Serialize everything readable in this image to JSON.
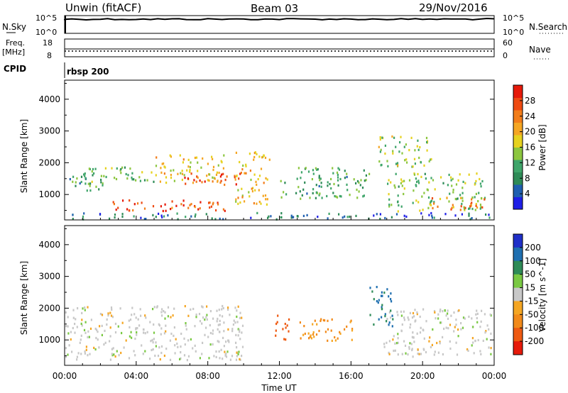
{
  "header": {
    "station": "Unwin (fitACF)",
    "beam": "Beam 03",
    "date": "29/Nov/2016"
  },
  "top_panels": {
    "nsky_label": "N.Sky",
    "nsearch_label": "N.Search",
    "noise_ticks_left": [
      "10^5",
      "10^0"
    ],
    "noise_ticks_right": [
      "10^5",
      "10^0"
    ],
    "freq_label_1": "Freq.",
    "freq_label_2": "[MHz]",
    "freq_ticks": [
      "18",
      "8"
    ],
    "nave_label": "Nave",
    "nave_ticks": [
      "60",
      "0"
    ],
    "cpid_label": "CPID",
    "cpid_value": "rbsp 200"
  },
  "chart_data": [
    {
      "type": "heatmap",
      "name": "power",
      "ylabel": "Slant Range [km]",
      "ylim": [
        200,
        4600
      ],
      "yticks": [
        1000,
        2000,
        3000,
        4000
      ],
      "xlim": [
        0,
        24
      ],
      "colorbar": {
        "label": "Power [dB]",
        "ticks": [
          4,
          8,
          12,
          16,
          20,
          24,
          28
        ],
        "range": [
          0,
          32
        ],
        "colors": [
          "#1f1fe6",
          "#1f5fb0",
          "#2e8b57",
          "#3fa56a",
          "#8cc63f",
          "#e6d21f",
          "#f5a623",
          "#f27d1a",
          "#ee4a12",
          "#e61a0a"
        ]
      },
      "features": [
        {
          "t0": 0.0,
          "t1": 2.0,
          "r0": 1150,
          "r1": 1700,
          "p": 10
        },
        {
          "t0": 1.0,
          "t1": 5.0,
          "r0": 1300,
          "r1": 1900,
          "p": 12
        },
        {
          "t0": 2.5,
          "t1": 9.5,
          "r0": 500,
          "r1": 850,
          "p": 27
        },
        {
          "t0": 5.0,
          "t1": 9.0,
          "r0": 1400,
          "r1": 2300,
          "p": 18
        },
        {
          "t0": 6.5,
          "t1": 9.8,
          "r0": 1250,
          "r1": 1700,
          "p": 26
        },
        {
          "t0": 9.5,
          "t1": 11.5,
          "r0": 700,
          "r1": 2400,
          "p": 20
        },
        {
          "t0": 12.0,
          "t1": 17.0,
          "r0": 900,
          "r1": 1900,
          "p": 11
        },
        {
          "t0": 17.5,
          "t1": 20.5,
          "r0": 1900,
          "r1": 2900,
          "p": 15
        },
        {
          "t0": 18.0,
          "t1": 23.5,
          "r0": 500,
          "r1": 1700,
          "p": 14
        },
        {
          "t0": 20.5,
          "t1": 23.5,
          "r0": 550,
          "r1": 950,
          "p": 24
        },
        {
          "t0": 0.0,
          "t1": 24.0,
          "r0": 250,
          "r1": 450,
          "p": 6
        }
      ]
    },
    {
      "type": "heatmap",
      "name": "velocity",
      "ylabel": "Slant Range [km]",
      "xlabel": "Time UT",
      "ylim": [
        200,
        4600
      ],
      "yticks": [
        1000,
        2000,
        3000,
        4000
      ],
      "xlim": [
        0,
        24
      ],
      "xticks": [
        "00:00",
        "04:00",
        "08:00",
        "12:00",
        "16:00",
        "20:00",
        "00:00"
      ],
      "colorbar": {
        "label": "Velocity [m s^-1]",
        "ticks": [
          200,
          100,
          50,
          15,
          -15,
          -50,
          -100,
          -200
        ],
        "colors": [
          "#1f2fc8",
          "#1f6fb0",
          "#2e8b57",
          "#7ac943",
          "#c8c8c8",
          "#f5a623",
          "#f28a1a",
          "#ee5a12",
          "#e61a0a"
        ]
      },
      "features": [
        {
          "t0": 0.0,
          "t1": 10.0,
          "r0": 400,
          "r1": 2100,
          "v": 0
        },
        {
          "t0": 11.7,
          "t1": 12.6,
          "r0": 1000,
          "r1": 1800,
          "v": -150
        },
        {
          "t0": 13.0,
          "t1": 16.2,
          "r0": 1000,
          "r1": 1700,
          "v": -60
        },
        {
          "t0": 17.8,
          "t1": 23.8,
          "r0": 500,
          "r1": 2000,
          "v": 0
        },
        {
          "t0": 17.0,
          "t1": 18.3,
          "r0": 1400,
          "r1": 2800,
          "v": 80
        }
      ]
    }
  ]
}
